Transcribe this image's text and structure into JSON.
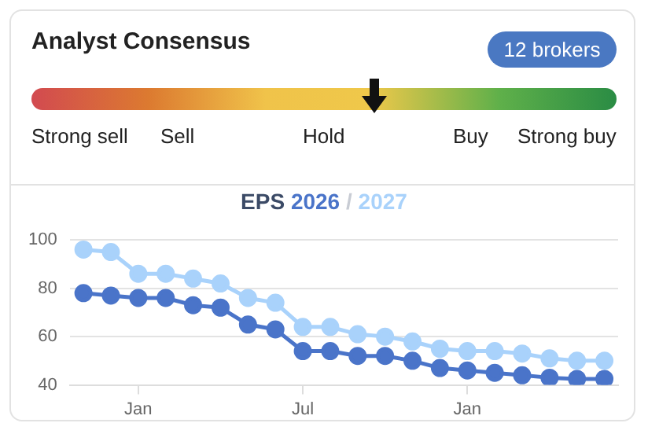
{
  "chart_data": [
    {
      "type": "other",
      "title": "Analyst Consensus",
      "annotations": [
        "12 brokers"
      ],
      "categories": [
        "Strong sell",
        "Sell",
        "Hold",
        "Buy",
        "Strong buy"
      ]
    },
    {
      "type": "line",
      "title": "EPS 2026 / 2027",
      "categories": [
        null,
        null,
        "Jan",
        null,
        null,
        null,
        null,
        null,
        "Jul",
        null,
        null,
        null,
        null,
        null,
        "Jan",
        null,
        null,
        null,
        null,
        null
      ],
      "series": [
        {
          "color": "#4a74c9",
          "values": [
            78,
            77,
            76,
            76,
            73,
            72,
            65,
            63,
            54,
            54,
            52,
            52,
            50,
            47,
            46,
            45,
            44,
            43,
            42.5,
            42.5
          ]
        },
        {
          "color": "#a9d2fb",
          "values": [
            96,
            95,
            86,
            86,
            84,
            82,
            76,
            74,
            64,
            64,
            61,
            60,
            58,
            55,
            54,
            54,
            53,
            51,
            50,
            50
          ]
        }
      ],
      "ylim": [
        40,
        100
      ],
      "yticks": [
        40,
        60,
        80,
        100
      ],
      "grid": "y",
      "marker": "circle",
      "line_style": "solid",
      "legend": false
    }
  ]
}
